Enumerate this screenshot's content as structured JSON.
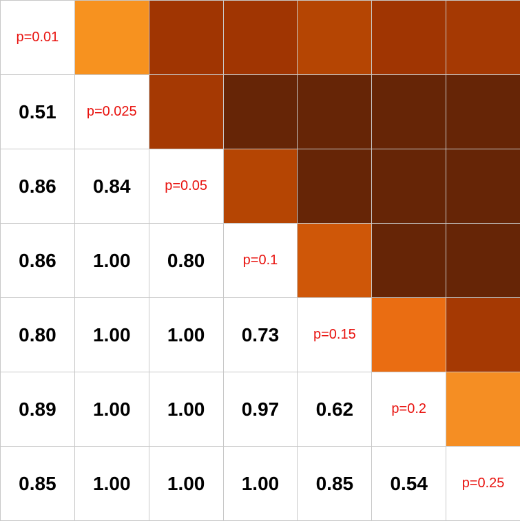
{
  "chart_data": {
    "type": "heatmap",
    "labels": [
      "p=0.01",
      "p=0.025",
      "p=0.05",
      "p=0.1",
      "p=0.15",
      "p=0.2",
      "p=0.25"
    ],
    "lower_values": [
      [
        null,
        null,
        null,
        null,
        null,
        null,
        null
      ],
      [
        "0.51",
        null,
        null,
        null,
        null,
        null,
        null
      ],
      [
        "0.86",
        "0.84",
        null,
        null,
        null,
        null,
        null
      ],
      [
        "0.86",
        "1.00",
        "0.80",
        null,
        null,
        null,
        null
      ],
      [
        "0.80",
        "1.00",
        "1.00",
        "0.73",
        null,
        null,
        null
      ],
      [
        "0.89",
        "1.00",
        "1.00",
        "0.97",
        "0.62",
        null,
        null
      ],
      [
        "0.85",
        "1.00",
        "1.00",
        "1.00",
        "0.85",
        "0.54",
        null
      ]
    ],
    "upper_colors": [
      [
        null,
        "#f7921f",
        "#a03502",
        "#a03502",
        "#b54503",
        "#a03502",
        "#a53903"
      ],
      [
        null,
        null,
        "#a53903",
        "#662506",
        "#662506",
        "#662506",
        "#662506"
      ],
      [
        null,
        null,
        null,
        "#b54503",
        "#662506",
        "#662506",
        "#662506"
      ],
      [
        null,
        null,
        null,
        null,
        "#cf5708",
        "#662506",
        "#662506"
      ],
      [
        null,
        null,
        null,
        null,
        null,
        "#ea6d12",
        "#a53903"
      ],
      [
        null,
        null,
        null,
        null,
        null,
        null,
        "#f58e23"
      ],
      [
        null,
        null,
        null,
        null,
        null,
        null,
        null
      ]
    ],
    "colors": {
      "diagonal_text": "#e8120e",
      "value_text": "#000000",
      "grid": "#c8c8c8"
    }
  }
}
